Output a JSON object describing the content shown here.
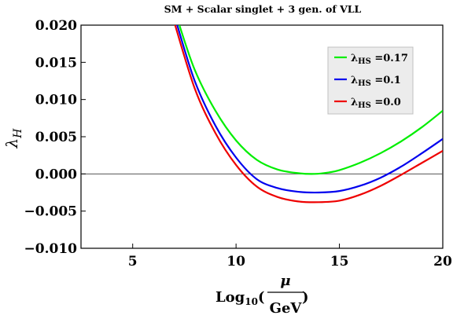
{
  "chart_data": {
    "type": "line",
    "title": "SM + Scalar singlet + 3 gen. of VLL",
    "ylabel": {
      "symbol": "λ",
      "subscript": "H"
    },
    "xlabel": {
      "prefix": "Log",
      "subscript": "10",
      "open": "(",
      "numerator": "μ",
      "denominator": "GeV",
      "close": ")"
    },
    "xlim": [
      2.5,
      20
    ],
    "ylim": [
      -0.01,
      0.02
    ],
    "xticks": [
      5,
      10,
      15,
      20
    ],
    "xtick_labels": [
      "5",
      "10",
      "15",
      "20"
    ],
    "yticks": [
      -0.01,
      -0.005,
      0,
      0.005,
      0.01,
      0.015,
      0.02
    ],
    "ytick_labels": [
      "−0.010",
      "−0.005",
      "0.000",
      "0.005",
      "0.010",
      "0.015",
      "0.020"
    ],
    "reference_line_y": 0,
    "grid": false,
    "legend_position": "top-right",
    "series": [
      {
        "name": "λHS =0.17",
        "legend_symbol": "λ",
        "legend_sub": "HS",
        "legend_value": " =0.17",
        "color": "#00ee00",
        "x": [
          7.2,
          8,
          9,
          10,
          11,
          12,
          13,
          13.8,
          14.5,
          15,
          16,
          17,
          18,
          19,
          20
        ],
        "y": [
          0.0205,
          0.014,
          0.0085,
          0.0045,
          0.0019,
          0.0006,
          0.0001,
          0.0,
          0.0002,
          0.0005,
          0.0015,
          0.0028,
          0.0044,
          0.0063,
          0.0085
        ]
      },
      {
        "name": "λHS =0.1",
        "legend_symbol": "λ",
        "legend_sub": "HS",
        "legend_value": " =0.1",
        "color": "#0000ee",
        "x": [
          7.1,
          8,
          9,
          10,
          11,
          12,
          13,
          14,
          15,
          16,
          17,
          18,
          19,
          20
        ],
        "y": [
          0.0205,
          0.0125,
          0.0065,
          0.0022,
          -0.0007,
          -0.0019,
          -0.0024,
          -0.0025,
          -0.0023,
          -0.0016,
          -0.0005,
          0.001,
          0.0028,
          0.0047
        ]
      },
      {
        "name": "λHS =0.0",
        "legend_symbol": "λ",
        "legend_sub": "HS",
        "legend_value": " =0.0",
        "color": "#ee0000",
        "x": [
          7.0,
          8,
          9,
          10,
          11,
          12,
          13,
          14,
          15,
          16,
          17,
          18,
          19,
          20
        ],
        "y": [
          0.0205,
          0.0115,
          0.0055,
          0.0012,
          -0.0017,
          -0.0031,
          -0.0037,
          -0.0038,
          -0.0036,
          -0.0028,
          -0.0016,
          -0.0001,
          0.0015,
          0.0031
        ]
      }
    ]
  }
}
